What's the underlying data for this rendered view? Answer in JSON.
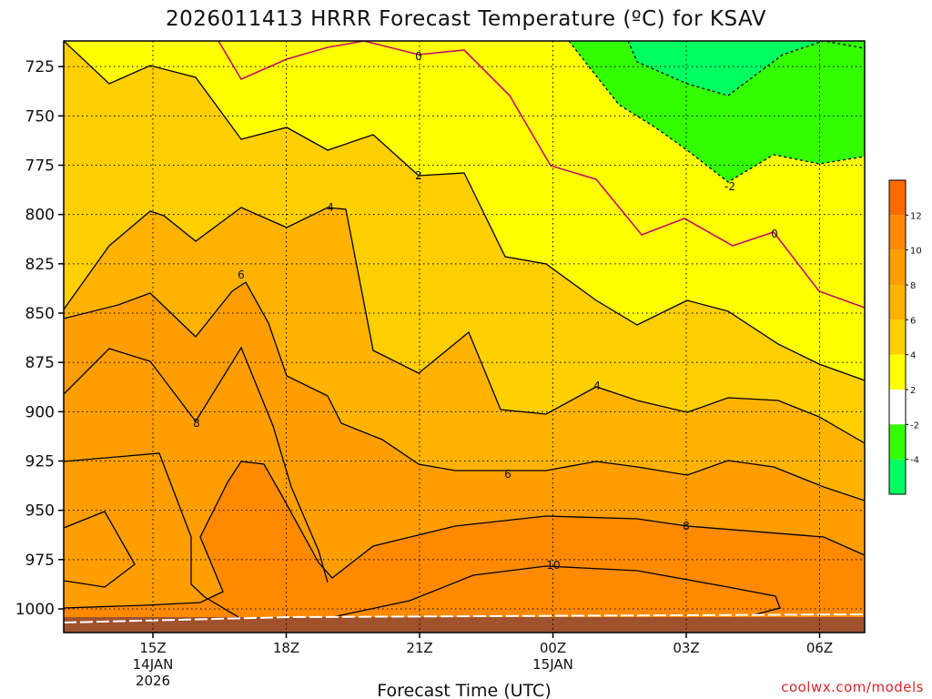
{
  "chart_data": {
    "type": "heatmap",
    "title": "2026011413 HRRR Forecast Temperature (ºC) for KSAV",
    "xlabel": "Forecast Time (UTC)",
    "ylabel": "",
    "x_ticks": [
      {
        "label": "15Z",
        "sub": [
          "14JAN",
          "2026"
        ]
      },
      {
        "label": "18Z",
        "sub": []
      },
      {
        "label": "21Z",
        "sub": []
      },
      {
        "label": "00Z",
        "sub": [
          "15JAN"
        ]
      },
      {
        "label": "03Z",
        "sub": []
      },
      {
        "label": "06Z",
        "sub": []
      }
    ],
    "y_ticks": [
      "725",
      "750",
      "775",
      "800",
      "825",
      "850",
      "875",
      "900",
      "925",
      "950",
      "975",
      "1000"
    ],
    "ylim": [
      1012,
      712
    ],
    "grid": true,
    "colorbar": {
      "placement": "right",
      "bins": [
        {
          "from": 12,
          "to": 14,
          "color": "#ff6a00"
        },
        {
          "from": 10,
          "to": 12,
          "color": "#ff8a00"
        },
        {
          "from": 8,
          "to": 10,
          "color": "#ff9e00"
        },
        {
          "from": 6,
          "to": 8,
          "color": "#ffb300"
        },
        {
          "from": 4,
          "to": 6,
          "color": "#ffcf00"
        },
        {
          "from": 2,
          "to": 4,
          "color": "#ffff00"
        },
        {
          "from": -2,
          "to": 2,
          "color": "#ffffff"
        },
        {
          "from": -4,
          "to": -2,
          "color": "#33ff00"
        },
        {
          "from": -6,
          "to": -4,
          "color": "#00ff60"
        }
      ],
      "tick_labels": [
        "12",
        "10",
        "8",
        "6",
        "4",
        "2",
        "-2",
        "-4"
      ]
    },
    "contour_labels": [
      "0",
      "0",
      "2",
      "-2",
      "4",
      "4",
      "6",
      "6",
      "8",
      "8",
      "10"
    ],
    "ground_color": "#a0522d"
  },
  "credit": "coolwx.com/models"
}
